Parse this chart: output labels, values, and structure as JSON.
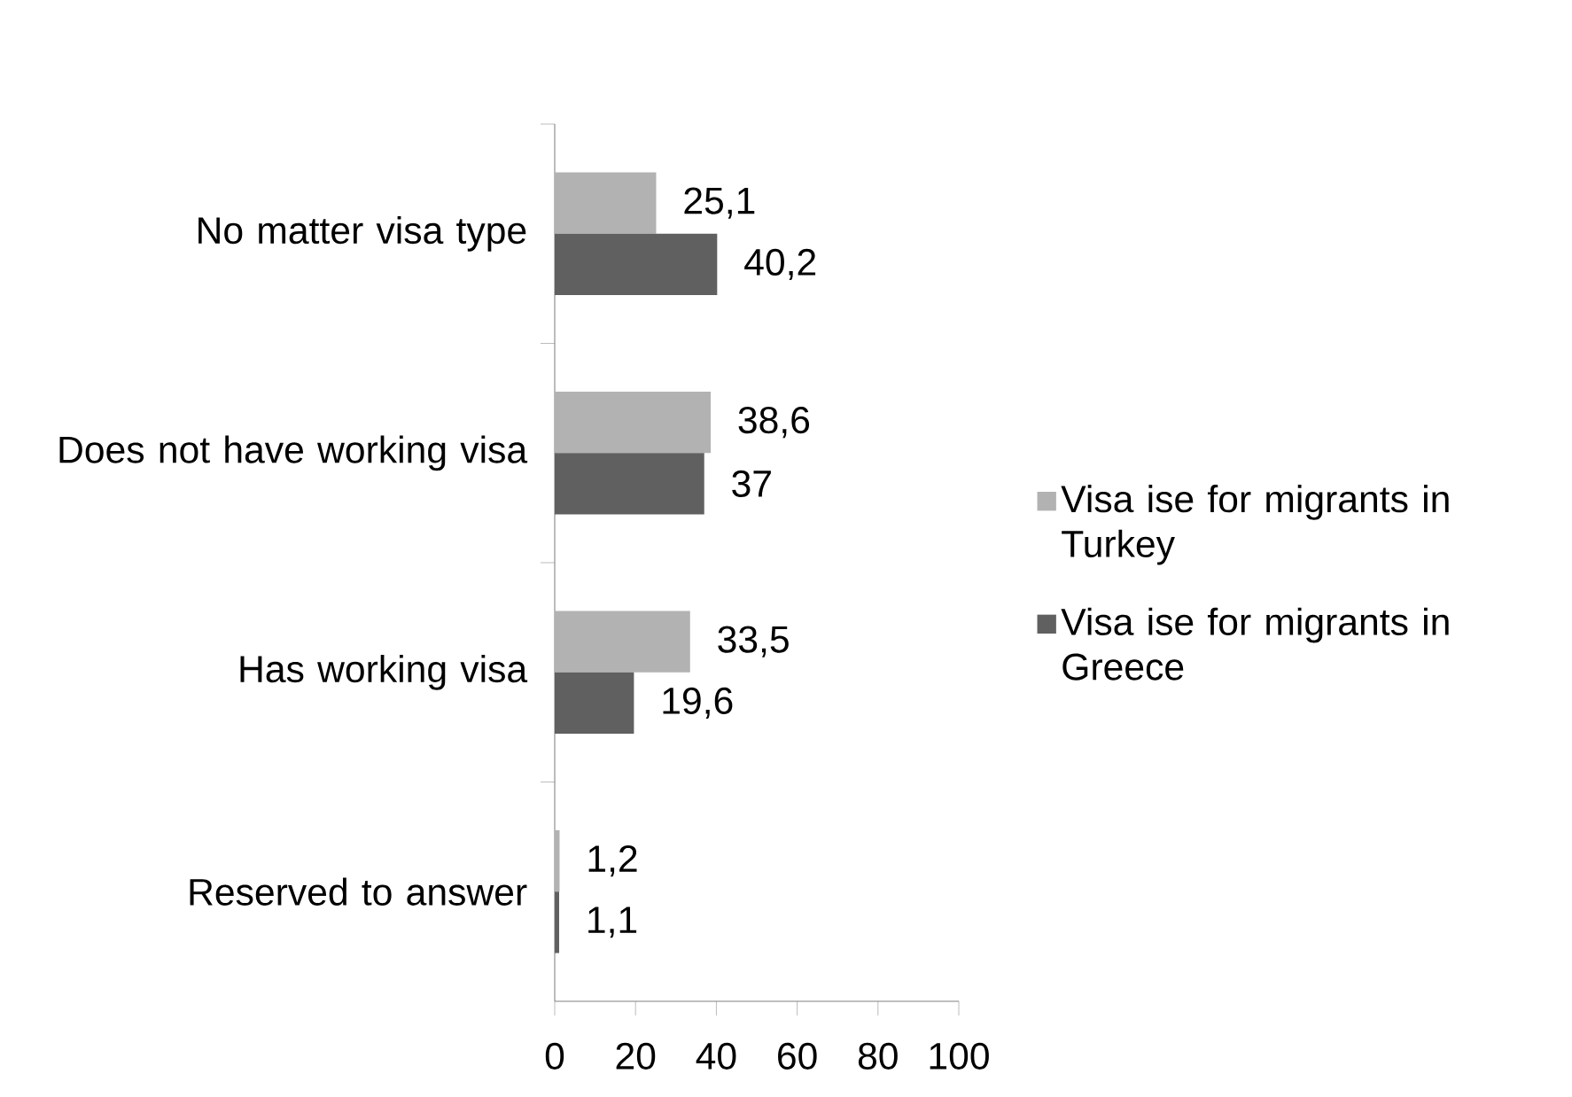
{
  "chart_data": {
    "type": "bar",
    "orientation": "horizontal",
    "categories": [
      "No matter visa type",
      "Does not have working visa",
      "Has working visa",
      "Reserved to answer"
    ],
    "series": [
      {
        "name": "Visa ise for migrants in Turkey",
        "color": "#b2b2b2",
        "values": [
          25.1,
          38.6,
          33.5,
          1.2
        ],
        "value_labels": [
          "25,1",
          "38,6",
          "33,5",
          "1,2"
        ]
      },
      {
        "name": "Visa ise for migrants in Greece",
        "color": "#606060",
        "values": [
          40.2,
          37,
          19.6,
          1.1
        ],
        "value_labels": [
          "40,2",
          "37",
          "19,6",
          "1,1"
        ]
      }
    ],
    "xlim": [
      0,
      100
    ],
    "xticks": [
      0,
      20,
      40,
      60,
      80,
      100
    ],
    "grid": false,
    "legend": "right"
  }
}
